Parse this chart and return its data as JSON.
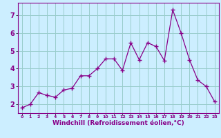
{
  "x": [
    0,
    1,
    2,
    3,
    4,
    5,
    6,
    7,
    8,
    9,
    10,
    11,
    12,
    13,
    14,
    15,
    16,
    17,
    18,
    19,
    20,
    21,
    22,
    23
  ],
  "y": [
    1.8,
    2.0,
    2.65,
    2.5,
    2.4,
    2.8,
    2.9,
    3.6,
    3.6,
    4.0,
    4.55,
    4.55,
    3.9,
    5.45,
    4.5,
    5.45,
    5.25,
    4.45,
    7.3,
    6.0,
    4.5,
    3.35,
    3.0,
    2.15
  ],
  "line_color": "#880088",
  "marker": "+",
  "marker_size": 4,
  "xlabel": "Windchill (Refroidissement éolien,°C)",
  "xlabel_color": "#880088",
  "ylabel_ticks": [
    2,
    3,
    4,
    5,
    6,
    7
  ],
  "xtick_labels": [
    "0",
    "1",
    "2",
    "3",
    "4",
    "5",
    "6",
    "7",
    "8",
    "9",
    "10",
    "11",
    "12",
    "13",
    "14",
    "15",
    "16",
    "17",
    "18",
    "19",
    "20",
    "21",
    "22",
    "23"
  ],
  "xlim": [
    -0.5,
    23.5
  ],
  "ylim": [
    1.5,
    7.7
  ],
  "bg_color": "#cceeff",
  "grid_color": "#99cccc",
  "tick_color": "#880088"
}
